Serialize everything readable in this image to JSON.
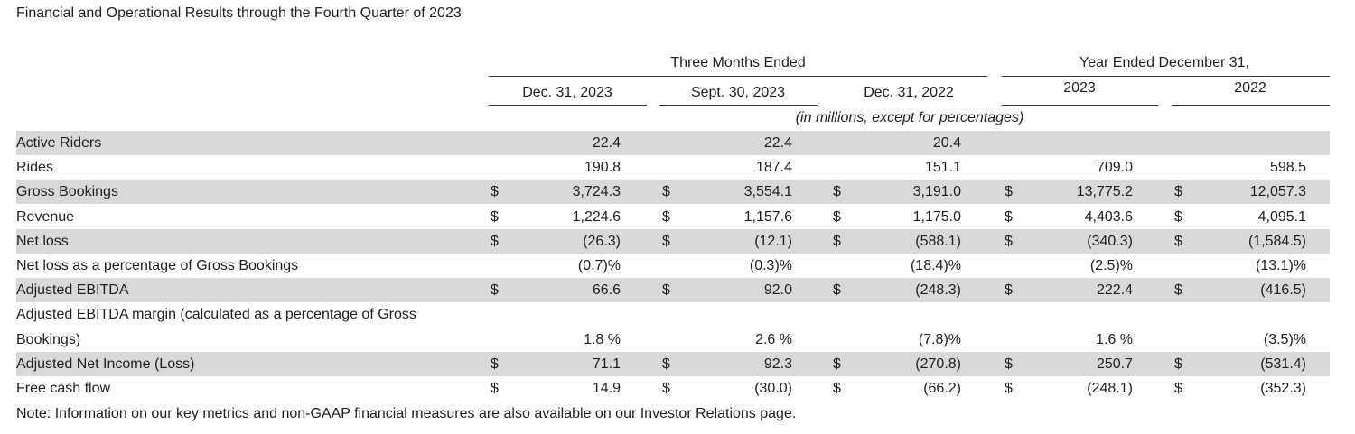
{
  "title": "Financial and Operational Results through the Fourth Quarter of 2023",
  "headers": {
    "three_months": "Three Months Ended",
    "year_ended": "Year Ended December 31,",
    "col1": "Dec. 31, 2023",
    "col2": "Sept. 30, 2023",
    "col3": "Dec. 31, 2022",
    "col4": "2023",
    "col5": "2022",
    "units": "(in millions, except for percentages)"
  },
  "rows": [
    {
      "label": "Active Riders",
      "dollar": [
        false,
        false,
        false,
        false,
        false
      ],
      "values": [
        "22.4",
        "22.4",
        "20.4",
        "",
        ""
      ]
    },
    {
      "label": "Rides",
      "dollar": [
        false,
        false,
        false,
        false,
        false
      ],
      "values": [
        "190.8",
        "187.4",
        "151.1",
        "709.0",
        "598.5"
      ]
    },
    {
      "label": "Gross Bookings",
      "dollar": [
        true,
        true,
        true,
        true,
        true
      ],
      "values": [
        "3,724.3",
        "3,554.1",
        "3,191.0",
        "13,775.2",
        "12,057.3"
      ]
    },
    {
      "label": "Revenue",
      "dollar": [
        true,
        true,
        true,
        true,
        true
      ],
      "values": [
        "1,224.6",
        "1,157.6",
        "1,175.0",
        "4,403.6",
        "4,095.1"
      ]
    },
    {
      "label": "Net loss",
      "dollar": [
        true,
        true,
        true,
        true,
        true
      ],
      "values": [
        "(26.3)",
        "(12.1)",
        "(588.1)",
        "(340.3)",
        "(1,584.5)"
      ]
    },
    {
      "label": "Net loss as a percentage of Gross Bookings",
      "dollar": [
        false,
        false,
        false,
        false,
        false
      ],
      "values": [
        "(0.7)%",
        "(0.3)%",
        "(18.4)%",
        "(2.5)%",
        "(13.1)%"
      ]
    },
    {
      "label": "Adjusted EBITDA",
      "dollar": [
        true,
        true,
        true,
        true,
        true
      ],
      "values": [
        "66.6",
        "92.0",
        "(248.3)",
        "222.4",
        "(416.5)"
      ]
    },
    {
      "label": "Adjusted EBITDA margin (calculated as a percentage of Gross",
      "dollar": [
        false,
        false,
        false,
        false,
        false
      ],
      "values": [
        "",
        "",
        "",
        "",
        ""
      ]
    },
    {
      "label": "Bookings)",
      "dollar": [
        false,
        false,
        false,
        false,
        false
      ],
      "values": [
        "1.8 %",
        "2.6 %",
        "(7.8)%",
        "1.6 %",
        "(3.5)%"
      ]
    },
    {
      "label": "Adjusted Net Income (Loss)",
      "dollar": [
        true,
        true,
        true,
        true,
        true
      ],
      "values": [
        "71.1",
        "92.3",
        "(270.8)",
        "250.7",
        "(531.4)"
      ]
    },
    {
      "label": "Free cash flow",
      "dollar": [
        true,
        true,
        true,
        true,
        true
      ],
      "values": [
        "14.9",
        "(30.0)",
        "(66.2)",
        "(248.1)",
        "(352.3)"
      ]
    }
  ],
  "currency_symbol": "$",
  "note": "Note: Information on our key metrics and non-GAAP financial measures are also available on our Investor Relations page.",
  "colors": {
    "band": "#d9d9d9",
    "text": "#1f1f1f",
    "rule": "#333333"
  }
}
